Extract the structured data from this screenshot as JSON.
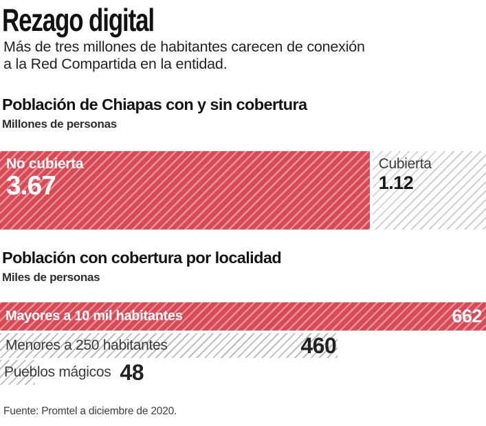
{
  "header": {
    "title": "Rezago digital",
    "subtitle_line1": "Más de tres millones de habitantes carecen de conexión",
    "subtitle_line2": "a la Red Compartida en la entidad."
  },
  "footer": {
    "source": "Fuente: Promtel a diciembre de 2020."
  },
  "colors": {
    "bar_red": "#d84a56",
    "hatch_pink": "rgba(255,255,255,0.42)",
    "hatch_gray_light": "#c8c8c8",
    "hatch_gray_mid": "#bcbcbc",
    "text_dark": "#191919"
  },
  "chart_data": [
    {
      "type": "bar",
      "variant": "horizontal-stacked",
      "title": "Población de Chiapas con y sin cobertura",
      "unit_label": "Millones de personas",
      "categories": [
        "No cubierta",
        "Cubierta"
      ],
      "values": [
        3.67,
        1.12
      ],
      "value_labels": [
        "3.67",
        "1.12"
      ],
      "segment_styles": [
        "red-hatched",
        "gray-hatched"
      ]
    },
    {
      "type": "bar",
      "variant": "horizontal",
      "title": "Población con cobertura por localidad",
      "unit_label": "Miles de personas",
      "categories": [
        "Mayores a 10 mil habitantes",
        "Menores a 250 habitantes",
        "Pueblos mágicos"
      ],
      "values": [
        662,
        460,
        48
      ],
      "xlim": [
        0,
        662
      ],
      "bar_styles": [
        "red-hatched",
        "gray-hatched",
        "gray-hatched"
      ],
      "value_placement": [
        "inside-right",
        "inside-right",
        "after-label"
      ]
    }
  ]
}
